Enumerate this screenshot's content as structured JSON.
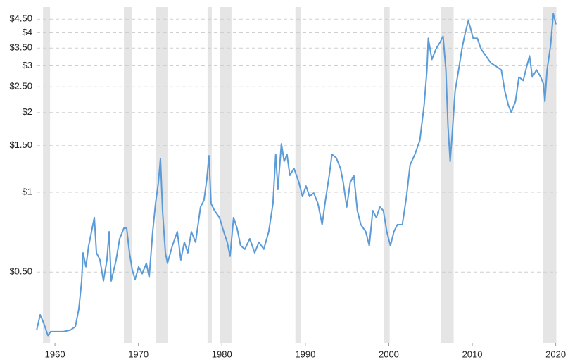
{
  "chart_data": {
    "type": "line",
    "color": "#5b9bd8",
    "log_scale": true,
    "grid": true,
    "recession_color": "#e5e5e5",
    "xlim": [
      1957.8,
      2020.2
    ],
    "xticks": [
      1960,
      1970,
      1980,
      1990,
      2000,
      2010,
      2020
    ],
    "ylim": [
      0.27,
      5.0
    ],
    "yticks": [
      {
        "value": 0.5,
        "label": "$0.50"
      },
      {
        "value": 1,
        "label": "$1"
      },
      {
        "value": 1.5,
        "label": "$1.50"
      },
      {
        "value": 2,
        "label": "$2"
      },
      {
        "value": 2.5,
        "label": "$2.50"
      },
      {
        "value": 3,
        "label": "$3"
      },
      {
        "value": 3.5,
        "label": "$3.50"
      },
      {
        "value": 4,
        "label": "$4"
      },
      {
        "value": 4.5,
        "label": "$4.50"
      }
    ],
    "recessions": [
      [
        1958.57,
        1959.41
      ],
      [
        1968.26,
        1969.18
      ],
      [
        1972.13,
        1973.48
      ],
      [
        1978.28,
        1978.79
      ],
      [
        1979.8,
        1981.15
      ],
      [
        1988.81,
        1989.49
      ],
      [
        1999.43,
        2000.1
      ],
      [
        2006.25,
        2007.77
      ],
      [
        2018.47,
        2020.07
      ]
    ],
    "x": [
      1957.81,
      1958.23,
      1958.65,
      1959.16,
      1959.49,
      1960,
      1961.01,
      1961.85,
      1962.44,
      1962.86,
      1963.2,
      1963.37,
      1963.71,
      1964.04,
      1964.38,
      1964.72,
      1964.97,
      1965.39,
      1965.81,
      1966.23,
      1966.49,
      1966.74,
      1967.33,
      1967.75,
      1968.26,
      1968.59,
      1968.93,
      1969.27,
      1969.6,
      1970.03,
      1970.45,
      1970.95,
      1971.29,
      1971.71,
      1972.05,
      1972.39,
      1972.64,
      1972.89,
      1973.23,
      1973.48,
      1974.07,
      1974.66,
      1975.08,
      1975.5,
      1975.92,
      1976.34,
      1976.85,
      1977.44,
      1977.86,
      1978.2,
      1978.45,
      1978.7,
      1979.12,
      1979.71,
      1980.22,
      1980.64,
      1980.98,
      1981.4,
      1981.82,
      1982.24,
      1982.75,
      1983.34,
      1983.93,
      1984.43,
      1985.02,
      1985.61,
      1986.12,
      1986.45,
      1986.71,
      1987.13,
      1987.46,
      1987.8,
      1988.14,
      1988.64,
      1989.23,
      1989.65,
      1990.08,
      1990.5,
      1991.0,
      1991.51,
      1992.01,
      1992.35,
      1992.86,
      1993.19,
      1993.7,
      1994.21,
      1994.54,
      1994.96,
      1995.38,
      1995.81,
      1996.23,
      1996.65,
      1997.24,
      1997.66,
      1998.08,
      1998.5,
      1998.93,
      1999.35,
      1999.76,
      2000.19,
      2000.61,
      2001.03,
      2001.62,
      2002.12,
      2002.55,
      2003.13,
      2003.72,
      2004.23,
      2004.57,
      2004.73,
      2005.16,
      2005.66,
      2006.17,
      2006.5,
      2006.84,
      2007.09,
      2007.35,
      2007.6,
      2007.94,
      2008.36,
      2008.76,
      2009.1,
      2009.52,
      2009.77,
      2010.11,
      2010.61,
      2011.04,
      2011.63,
      2012.22,
      2012.89,
      2013.48,
      2013.9,
      2014.32,
      2014.66,
      2015.17,
      2015.59,
      2016.1,
      2016.52,
      2016.86,
      2017.19,
      2017.7,
      2018.2,
      2018.54,
      2018.7,
      2018.96,
      2019.38,
      2019.71,
      2020.03
    ],
    "values": [
      0.302,
      0.345,
      0.321,
      0.288,
      0.298,
      0.298,
      0.298,
      0.302,
      0.311,
      0.363,
      0.463,
      0.591,
      0.524,
      0.629,
      0.71,
      0.803,
      0.591,
      0.556,
      0.463,
      0.556,
      0.71,
      0.463,
      0.556,
      0.668,
      0.732,
      0.732,
      0.591,
      0.508,
      0.469,
      0.524,
      0.493,
      0.54,
      0.478,
      0.71,
      0.907,
      1.089,
      1.341,
      0.853,
      0.591,
      0.54,
      0.629,
      0.71,
      0.556,
      0.648,
      0.591,
      0.71,
      0.648,
      0.88,
      0.935,
      1.123,
      1.374,
      0.907,
      0.853,
      0.803,
      0.71,
      0.648,
      0.574,
      0.803,
      0.732,
      0.629,
      0.61,
      0.668,
      0.591,
      0.648,
      0.61,
      0.71,
      0.907,
      1.391,
      1.025,
      1.524,
      1.308,
      1.391,
      1.158,
      1.231,
      1.089,
      0.964,
      1.056,
      0.964,
      0.994,
      0.907,
      0.755,
      0.907,
      1.158,
      1.391,
      1.349,
      1.231,
      1.089,
      0.88,
      1.089,
      1.158,
      0.853,
      0.755,
      0.71,
      0.629,
      0.853,
      0.803,
      0.88,
      0.853,
      0.71,
      0.629,
      0.71,
      0.755,
      0.755,
      0.964,
      1.269,
      1.391,
      1.571,
      2.133,
      2.894,
      3.81,
      3.171,
      3.476,
      3.694,
      3.88,
      2.894,
      1.775,
      1.308,
      1.67,
      2.41,
      2.894,
      3.476,
      3.928,
      4.438,
      4.175,
      3.81,
      3.81,
      3.476,
      3.27,
      3.076,
      2.983,
      2.894,
      2.41,
      2.133,
      2.006,
      2.199,
      2.722,
      2.641,
      2.983,
      3.27,
      2.722,
      2.894,
      2.722,
      2.561,
      2.199,
      2.894,
      3.583,
      4.717,
      4.304
    ]
  }
}
